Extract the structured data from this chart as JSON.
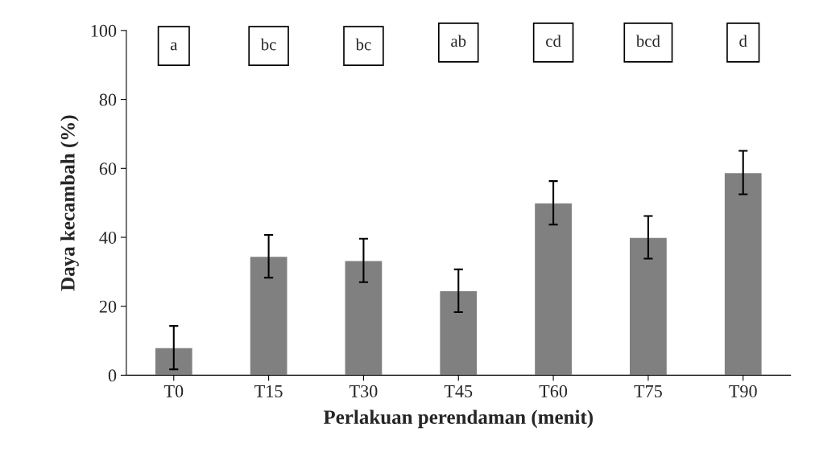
{
  "chart_data": {
    "type": "bar",
    "xlabel": "Perlakuan perendaman (menit)",
    "ylabel": "Daya kecambah (%)",
    "categories": [
      "T0",
      "T15",
      "T30",
      "T45",
      "T60",
      "T75",
      "T90"
    ],
    "values": [
      8,
      34.5,
      33.3,
      24.5,
      50,
      40,
      58.8
    ],
    "errors": [
      6.3,
      6.2,
      6.3,
      6.2,
      6.3,
      6.2,
      6.3
    ],
    "color": "#808080",
    "ylim": [
      0,
      100
    ],
    "yticks": [
      0,
      20,
      40,
      60,
      80,
      100
    ],
    "grid": false,
    "annotations": [
      "a",
      "bc",
      "bc",
      "ab",
      "cd",
      "bcd",
      "d"
    ]
  }
}
